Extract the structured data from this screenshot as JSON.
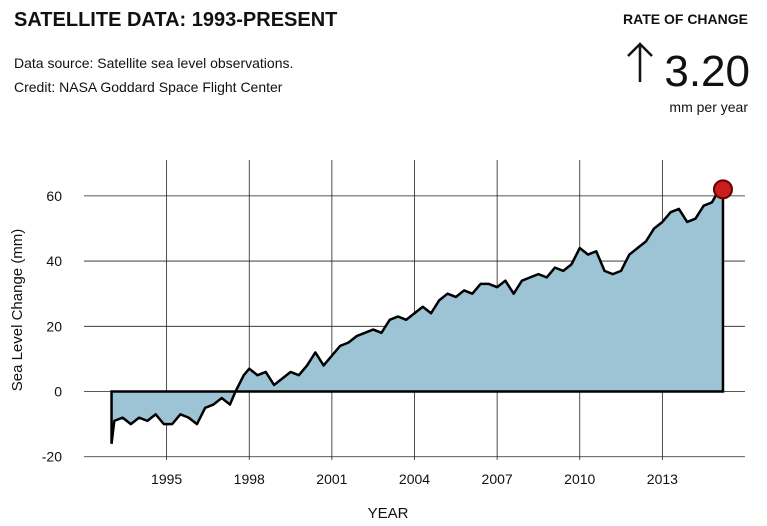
{
  "header": {
    "title": "SATELLITE DATA: 1993-PRESENT",
    "source": "Data source: Satellite sea level observations.",
    "credit": "Credit: NASA Goddard Space Flight Center"
  },
  "rate_of_change": {
    "label": "RATE OF CHANGE",
    "value": "3.20",
    "unit": "mm per year"
  },
  "chart_data": {
    "type": "area",
    "y_label": "Sea Level Change (mm)",
    "x_label": "YEAR",
    "x": [
      1993.0,
      1993.1,
      1993.4,
      1993.7,
      1994.0,
      1994.3,
      1994.6,
      1994.9,
      1995.2,
      1995.5,
      1995.8,
      1996.1,
      1996.4,
      1996.7,
      1997.0,
      1997.3,
      1997.5,
      1997.8,
      1998.0,
      1998.3,
      1998.6,
      1998.9,
      1999.2,
      1999.5,
      1999.8,
      2000.1,
      2000.4,
      2000.7,
      2001.0,
      2001.3,
      2001.6,
      2001.9,
      2002.2,
      2002.5,
      2002.8,
      2003.1,
      2003.4,
      2003.7,
      2004.0,
      2004.3,
      2004.6,
      2004.9,
      2005.2,
      2005.5,
      2005.8,
      2006.1,
      2006.4,
      2006.7,
      2007.0,
      2007.3,
      2007.6,
      2007.9,
      2008.2,
      2008.5,
      2008.8,
      2009.1,
      2009.4,
      2009.7,
      2010.0,
      2010.3,
      2010.6,
      2010.9,
      2011.2,
      2011.5,
      2011.8,
      2012.1,
      2012.4,
      2012.7,
      2013.0,
      2013.3,
      2013.6,
      2013.9,
      2014.2,
      2014.5,
      2014.8,
      2015.0,
      2015.2
    ],
    "series": [
      {
        "name": "Sea level",
        "color": "#9dc4d4",
        "values": [
          -16,
          -9,
          -8,
          -10,
          -8,
          -9,
          -7,
          -10,
          -10,
          -7,
          -8,
          -10,
          -5,
          -4,
          -2,
          -4,
          0,
          5,
          7,
          5,
          6,
          2,
          4,
          6,
          5,
          8,
          12,
          8,
          11,
          14,
          15,
          17,
          18,
          19,
          18,
          22,
          23,
          22,
          24,
          26,
          24,
          28,
          30,
          29,
          31,
          30,
          33,
          33,
          32,
          34,
          30,
          34,
          35,
          36,
          35,
          38,
          37,
          39,
          44,
          42,
          43,
          37,
          36,
          37,
          42,
          44,
          46,
          50,
          52,
          55,
          56,
          52,
          53,
          57,
          58,
          61,
          62
        ]
      }
    ],
    "line_color": "#000000",
    "highlight_color": "#c81e1e",
    "xlim": [
      1992,
      2016
    ],
    "xticks": [
      1995,
      1998,
      2001,
      2004,
      2007,
      2010,
      2013
    ],
    "ylim": [
      -21,
      71
    ],
    "yticks": [
      -20,
      0,
      20,
      40,
      60
    ],
    "grid": true
  }
}
